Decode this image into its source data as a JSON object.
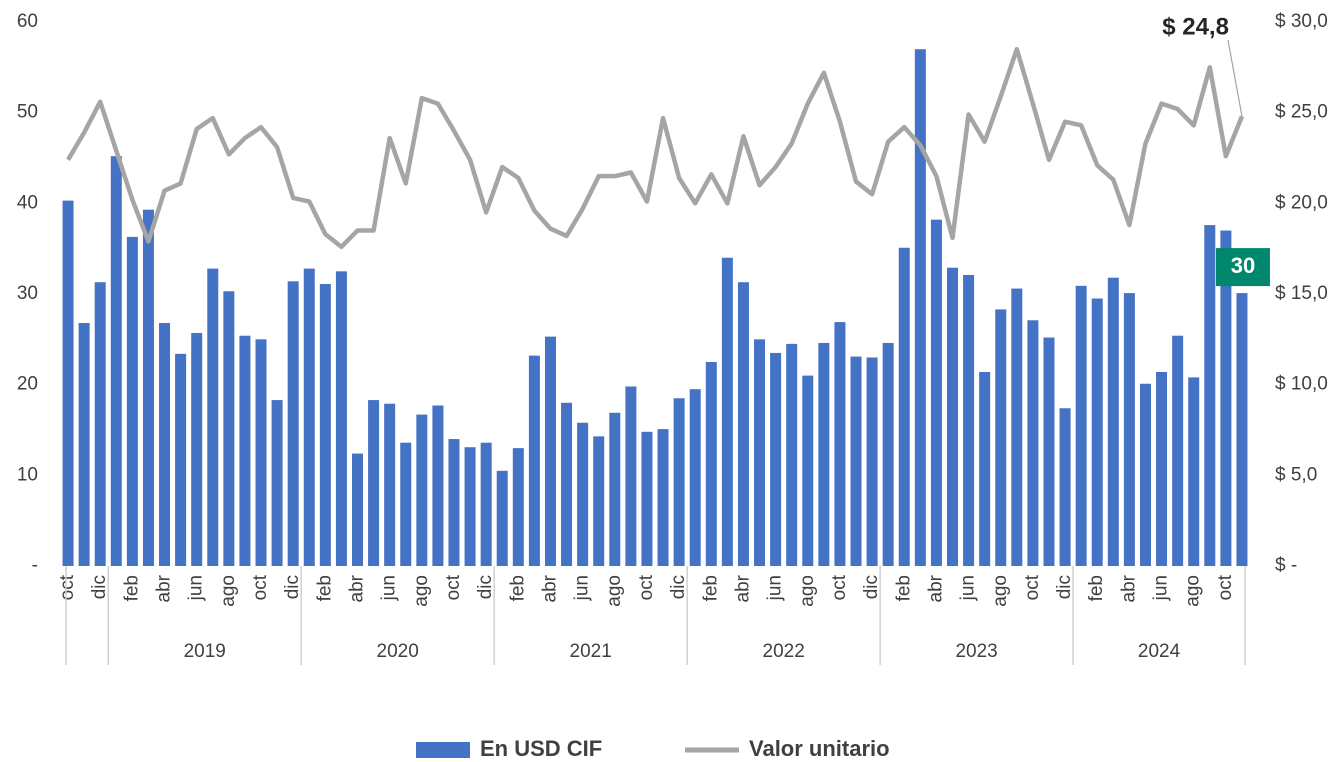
{
  "chart_data": {
    "type": "bar",
    "categories": [
      "oct",
      null,
      "dic",
      null,
      "feb",
      null,
      "abr",
      null,
      "jun",
      null,
      "ago",
      null,
      "oct",
      null,
      "dic",
      null,
      "feb",
      null,
      "abr",
      null,
      "jun",
      null,
      "ago",
      null,
      "oct",
      null,
      "dic",
      null,
      "feb",
      null,
      "abr",
      null,
      "jun",
      null,
      "ago",
      null,
      "oct",
      null,
      "dic",
      null,
      "feb",
      null,
      "abr",
      null,
      "jun",
      null,
      "ago",
      null,
      "oct",
      null,
      "dic",
      null,
      "feb",
      null,
      "abr",
      null,
      "jun",
      null,
      "ago",
      null,
      "oct",
      null,
      "dic",
      null,
      "feb",
      null,
      "abr",
      null,
      "jun",
      null,
      "ago",
      null,
      "oct",
      null
    ],
    "year_groups": [
      "2019",
      "2020",
      "2021",
      "2022",
      "2023",
      "2024"
    ],
    "series": [
      {
        "name": "En USD CIF",
        "type": "bar",
        "color": "#4472c4",
        "values": [
          40.3,
          26.8,
          31.3,
          45.2,
          36.3,
          39.3,
          26.8,
          23.4,
          25.7,
          32.8,
          30.3,
          25.4,
          25.0,
          18.3,
          31.4,
          32.8,
          31.1,
          32.5,
          12.4,
          18.3,
          17.9,
          13.6,
          16.7,
          17.7,
          14.0,
          13.1,
          13.6,
          10.5,
          13.0,
          23.2,
          25.3,
          18.0,
          15.8,
          14.3,
          16.9,
          19.8,
          14.8,
          15.1,
          18.5,
          19.5,
          22.5,
          34.0,
          31.3,
          25.0,
          23.5,
          24.5,
          21.0,
          24.6,
          26.9,
          23.1,
          23.0,
          24.6,
          35.1,
          57.0,
          38.2,
          32.9,
          32.1,
          21.4,
          28.3,
          30.6,
          27.1,
          25.2,
          17.4,
          30.9,
          29.5,
          31.8,
          30.1,
          20.1,
          21.4,
          25.4,
          20.8,
          37.6,
          37.0,
          30.1
        ],
        "value_labels": [
          null,
          null,
          null,
          null,
          null,
          null,
          null,
          null,
          null,
          null,
          null,
          null,
          null,
          null,
          null,
          null,
          null,
          null,
          null,
          null,
          null,
          null,
          null,
          null,
          null,
          null,
          null,
          null,
          null,
          null,
          null,
          null,
          null,
          null,
          null,
          null,
          null,
          null,
          null,
          null,
          null,
          null,
          null,
          null,
          null,
          null,
          null,
          null,
          null,
          null,
          null,
          null,
          null,
          null,
          null,
          null,
          null,
          null,
          null,
          null,
          null,
          null,
          null,
          null,
          null,
          null,
          null,
          null,
          null,
          null,
          null,
          null,
          null,
          "30"
        ],
        "label_color": "#00876c"
      },
      {
        "name": "Valor unitario",
        "type": "line",
        "axis": "y2",
        "color": "#a5a5a5",
        "values": [
          22.4,
          23.9,
          25.6,
          22.9,
          20.2,
          17.9,
          20.7,
          21.1,
          24.1,
          24.7,
          22.7,
          23.6,
          24.2,
          23.1,
          20.3,
          20.1,
          18.3,
          17.6,
          18.5,
          18.5,
          23.6,
          21.1,
          25.8,
          25.5,
          24.0,
          22.4,
          19.5,
          22.0,
          21.4,
          19.6,
          18.6,
          18.2,
          19.7,
          21.5,
          21.5,
          21.7,
          20.1,
          24.7,
          21.4,
          20.0,
          21.6,
          20.0,
          23.7,
          21.0,
          22.0,
          23.3,
          25.5,
          27.2,
          24.5,
          21.2,
          20.5,
          23.4,
          24.2,
          23.2,
          21.5,
          18.1,
          24.9,
          23.4,
          25.9,
          28.5,
          25.5,
          22.4,
          24.5,
          24.3,
          22.1,
          21.3,
          18.8,
          23.3,
          25.5,
          25.2,
          24.3,
          27.5,
          22.6,
          24.8
        ],
        "value_labels": [
          null,
          null,
          null,
          null,
          null,
          null,
          null,
          null,
          null,
          null,
          null,
          null,
          null,
          null,
          null,
          null,
          null,
          null,
          null,
          null,
          null,
          null,
          null,
          null,
          null,
          null,
          null,
          null,
          null,
          null,
          null,
          null,
          null,
          null,
          null,
          null,
          null,
          null,
          null,
          null,
          null,
          null,
          null,
          null,
          null,
          null,
          null,
          null,
          null,
          null,
          null,
          null,
          null,
          null,
          null,
          null,
          null,
          null,
          null,
          null,
          null,
          null,
          null,
          null,
          null,
          null,
          null,
          null,
          null,
          null,
          null,
          null,
          null,
          "$ 24,8"
        ]
      }
    ],
    "ylim": [
      0,
      60
    ],
    "yticks": [
      {
        "value": 0,
        "label": "-"
      },
      10,
      20,
      30,
      40,
      50,
      60
    ],
    "y2lim": [
      0,
      30
    ],
    "y2ticks": [
      {
        "value": 0,
        "label": "$ -"
      },
      {
        "value": 5,
        "label": "$ 5,0"
      },
      {
        "value": 10,
        "label": "$ 10,0"
      },
      {
        "value": 15,
        "label": "$ 15,0"
      },
      {
        "value": 20,
        "label": "$ 20,0"
      },
      {
        "value": 25,
        "label": "$ 25,0"
      },
      {
        "value": 30,
        "label": "$ 30,0"
      }
    ],
    "legend": "bottom",
    "grid": false
  }
}
